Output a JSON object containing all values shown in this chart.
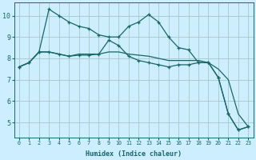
{
  "xlabel": "Humidex (Indice chaleur)",
  "background_color": "#cceeff",
  "grid_color": "#aacccc",
  "line_color": "#1a6666",
  "series1_y": [
    7.6,
    7.8,
    8.3,
    10.3,
    10.0,
    9.7,
    9.5,
    9.4,
    9.1,
    9.0,
    9.0,
    9.5,
    9.7,
    10.05,
    9.7,
    9.0,
    8.5,
    8.4,
    7.8,
    7.8,
    7.1,
    5.4,
    4.65,
    4.8
  ],
  "series2_y": [
    7.6,
    7.8,
    8.3,
    8.3,
    8.2,
    8.1,
    8.15,
    8.15,
    8.2,
    8.85,
    8.6,
    8.1,
    7.9,
    7.8,
    7.7,
    7.6,
    7.7,
    7.7,
    7.8,
    7.8,
    7.1,
    5.4,
    4.65,
    4.8
  ],
  "series3_y": [
    7.6,
    7.8,
    8.3,
    8.3,
    8.2,
    8.1,
    8.2,
    8.2,
    8.2,
    8.3,
    8.3,
    8.2,
    8.15,
    8.1,
    8.0,
    7.9,
    7.9,
    7.9,
    7.9,
    7.8,
    7.5,
    7.0,
    5.4,
    4.8
  ],
  "ylim": [
    4.3,
    10.6
  ],
  "yticks": [
    5,
    6,
    7,
    8,
    9,
    10
  ],
  "xlim": [
    -0.5,
    23.5
  ],
  "xticks": [
    0,
    1,
    2,
    3,
    4,
    5,
    6,
    7,
    8,
    9,
    10,
    11,
    12,
    13,
    14,
    15,
    16,
    17,
    18,
    19,
    20,
    21,
    22,
    23
  ]
}
